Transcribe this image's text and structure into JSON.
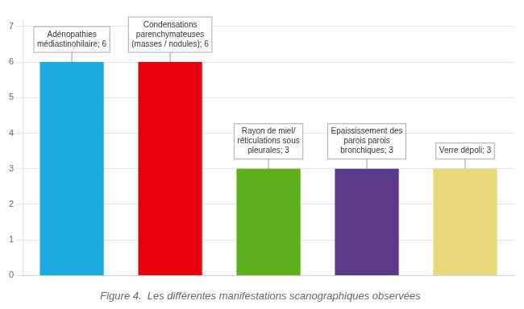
{
  "chart_data": {
    "type": "bar",
    "title": "Figure 4.  Les différentes manifestations scanographiques observées",
    "categories": [
      null,
      null,
      null,
      null,
      null
    ],
    "values": [
      6,
      6,
      3,
      3,
      3
    ],
    "colors": [
      "#1AACE0",
      "#E8000D",
      "#5CB11A",
      "#5C3A8A",
      "#E8D87A"
    ],
    "ylim": [
      0,
      7.2
    ],
    "yticks": [
      0,
      1,
      2,
      3,
      4,
      5,
      6,
      7
    ],
    "grid": true,
    "tick_labels": "y",
    "annotations": [
      "Adénopathies\nmédiastinohilaire; 6",
      "Condensations\nparenchymateuses\n(masses / nodules); 6",
      "Rayon de miel/\nréticulations sous\npleurales; 3",
      "Epaississement des\nparois parois\nbronchiques; 3",
      "Verre dépoli; 3"
    ]
  }
}
